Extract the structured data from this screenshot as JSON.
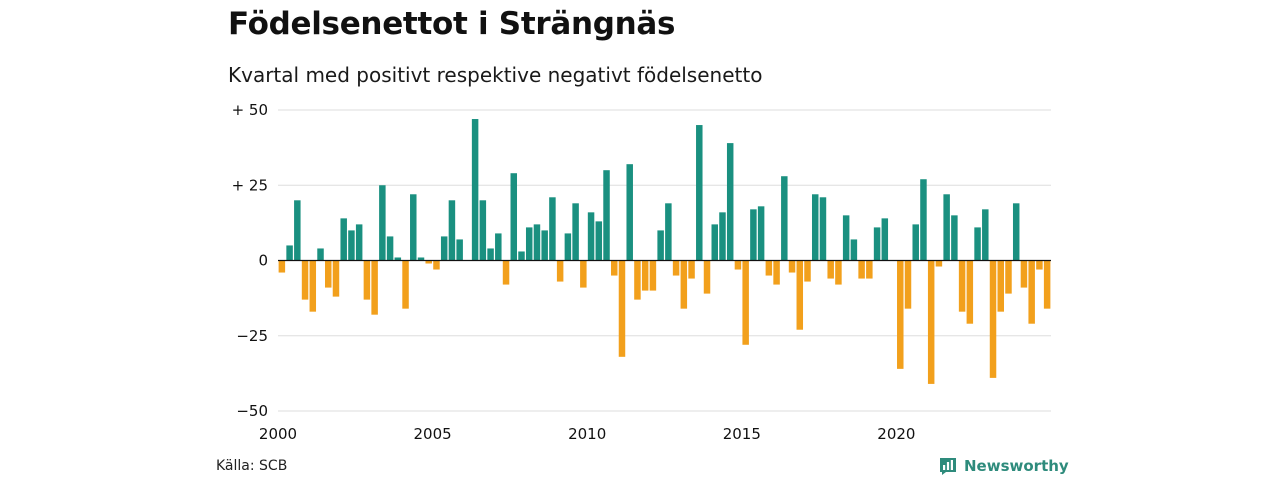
{
  "colors": {
    "positive": "#1a9080",
    "negative": "#f2a01c",
    "grid": "#dddddd",
    "zero": "#111111",
    "brand": "#2e8b7c"
  },
  "footer": {
    "source": "Källa: SCB",
    "brand": "Newsworthy"
  },
  "chart_data": {
    "type": "bar",
    "title": "Födelsenettot i Strängnäs",
    "subtitle": "Kvartal med positivt respektive negativt födelsenetto",
    "xlabel": "",
    "ylabel": "",
    "xlim": [
      2000,
      2025
    ],
    "ylim": [
      -50,
      50
    ],
    "x_ticks": [
      {
        "value": 2000,
        "label": "2000"
      },
      {
        "value": 2005,
        "label": "2005"
      },
      {
        "value": 2010,
        "label": "2010"
      },
      {
        "value": 2015,
        "label": "2015"
      },
      {
        "value": 2020,
        "label": "2020"
      }
    ],
    "y_ticks": [
      {
        "value": 50,
        "label": "+ 50"
      },
      {
        "value": 25,
        "label": "+ 25"
      },
      {
        "value": 0,
        "label": "0"
      },
      {
        "value": -25,
        "label": "−25"
      },
      {
        "value": -50,
        "label": "−50"
      }
    ],
    "grid": true,
    "legend": "none",
    "categories": [
      "2000 Q1",
      "2000 Q2",
      "2000 Q3",
      "2000 Q4",
      "2001 Q1",
      "2001 Q2",
      "2001 Q3",
      "2001 Q4",
      "2002 Q1",
      "2002 Q2",
      "2002 Q3",
      "2002 Q4",
      "2003 Q1",
      "2003 Q2",
      "2003 Q3",
      "2003 Q4",
      "2004 Q1",
      "2004 Q2",
      "2004 Q3",
      "2004 Q4",
      "2005 Q1",
      "2005 Q2",
      "2005 Q3",
      "2005 Q4",
      "2006 Q1",
      "2006 Q2",
      "2006 Q3",
      "2006 Q4",
      "2007 Q1",
      "2007 Q2",
      "2007 Q3",
      "2007 Q4",
      "2008 Q1",
      "2008 Q2",
      "2008 Q3",
      "2008 Q4",
      "2009 Q1",
      "2009 Q2",
      "2009 Q3",
      "2009 Q4",
      "2010 Q1",
      "2010 Q2",
      "2010 Q3",
      "2010 Q4",
      "2011 Q1",
      "2011 Q2",
      "2011 Q3",
      "2011 Q4",
      "2012 Q1",
      "2012 Q2",
      "2012 Q3",
      "2012 Q4",
      "2013 Q1",
      "2013 Q2",
      "2013 Q3",
      "2013 Q4",
      "2014 Q1",
      "2014 Q2",
      "2014 Q3",
      "2014 Q4",
      "2015 Q1",
      "2015 Q2",
      "2015 Q3",
      "2015 Q4",
      "2016 Q1",
      "2016 Q2",
      "2016 Q3",
      "2016 Q4",
      "2017 Q1",
      "2017 Q2",
      "2017 Q3",
      "2017 Q4",
      "2018 Q1",
      "2018 Q2",
      "2018 Q3",
      "2018 Q4",
      "2019 Q1",
      "2019 Q2",
      "2019 Q3",
      "2019 Q4",
      "2020 Q1",
      "2020 Q2",
      "2020 Q3",
      "2020 Q4",
      "2021 Q1",
      "2021 Q2",
      "2021 Q3",
      "2021 Q4",
      "2022 Q1",
      "2022 Q2",
      "2022 Q3",
      "2022 Q4",
      "2023 Q1",
      "2023 Q2",
      "2023 Q3",
      "2023 Q4",
      "2024 Q1",
      "2024 Q2",
      "2024 Q3",
      "2024 Q4"
    ],
    "values": [
      -4,
      5,
      20,
      -13,
      -17,
      4,
      -9,
      -12,
      14,
      10,
      12,
      -13,
      -18,
      25,
      8,
      1,
      -16,
      22,
      1,
      -1,
      -3,
      8,
      20,
      7,
      0,
      47,
      20,
      4,
      9,
      -8,
      29,
      3,
      11,
      12,
      10,
      21,
      -7,
      9,
      19,
      -9,
      16,
      13,
      30,
      -5,
      -32,
      32,
      -13,
      -10,
      -10,
      10,
      19,
      -5,
      -16,
      -6,
      45,
      -11,
      12,
      16,
      39,
      -3,
      -28,
      17,
      18,
      -5,
      -8,
      28,
      -4,
      -23,
      -7,
      22,
      21,
      -6,
      -8,
      15,
      7,
      -6,
      -6,
      11,
      14,
      0,
      -36,
      -16,
      12,
      27,
      -41,
      -2,
      22,
      15,
      -17,
      -21,
      11,
      17,
      -39,
      -17,
      -11,
      19,
      -9,
      -21,
      -3,
      -16
    ]
  }
}
